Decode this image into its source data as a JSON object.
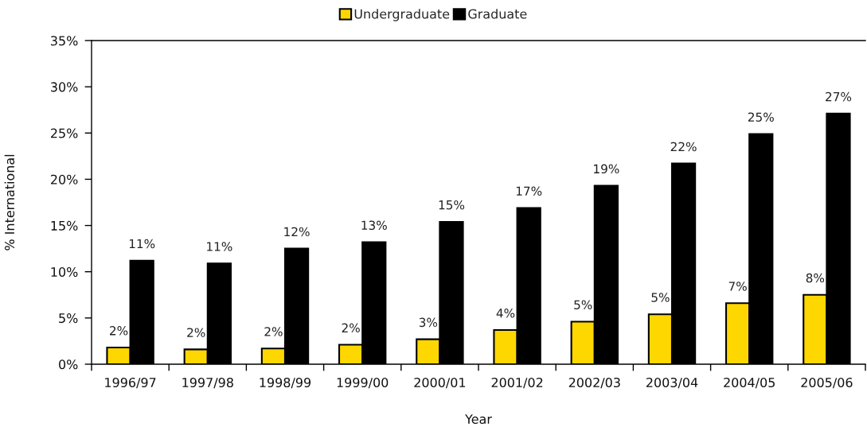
{
  "chart_data": {
    "type": "bar",
    "categories": [
      "1996/97",
      "1997/98",
      "1998/99",
      "1999/00",
      "2000/01",
      "2001/02",
      "2002/03",
      "2003/04",
      "2004/05",
      "2005/06"
    ],
    "series": [
      {
        "name": "Undergraduate",
        "color": "#ffd700",
        "values": [
          1.8,
          1.6,
          1.7,
          2.1,
          2.7,
          3.7,
          4.6,
          5.4,
          6.6,
          7.5
        ],
        "value_labels": [
          "2%",
          "2%",
          "2%",
          "2%",
          "3%",
          "4%",
          "5%",
          "5%",
          "7%",
          "8%"
        ]
      },
      {
        "name": "Graduate",
        "color": "#000000",
        "values": [
          11.2,
          10.9,
          12.5,
          13.2,
          15.4,
          16.9,
          19.3,
          21.7,
          24.9,
          27.1
        ],
        "value_labels": [
          "11%",
          "11%",
          "12%",
          "13%",
          "15%",
          "17%",
          "19%",
          "22%",
          "25%",
          "27%"
        ]
      }
    ],
    "xlabel": "Year",
    "ylabel": "% International",
    "ylim": [
      0,
      35
    ],
    "yticks": [
      {
        "value": 0,
        "label": "0%"
      },
      {
        "value": 5,
        "label": "5%"
      },
      {
        "value": 10,
        "label": "10%"
      },
      {
        "value": 15,
        "label": "15%"
      },
      {
        "value": 20,
        "label": "20%"
      },
      {
        "value": 25,
        "label": "25%"
      },
      {
        "value": 30,
        "label": "30%"
      },
      {
        "value": 35,
        "label": "35%"
      }
    ],
    "legend": "top",
    "grid": false
  }
}
